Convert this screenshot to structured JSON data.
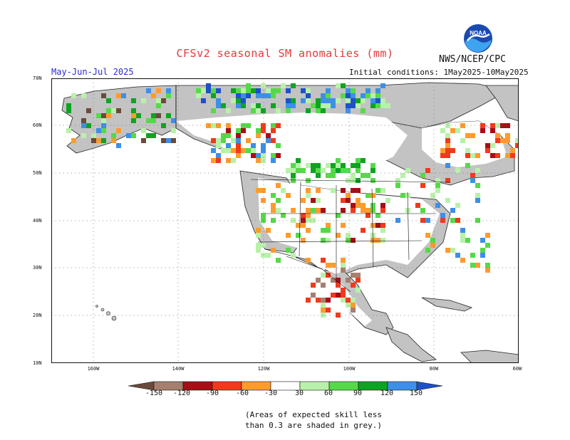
{
  "title": "CFSv2 seasonal SM anomalies (mm)",
  "agency": "NWS/NCEP/CPC",
  "logo_text": "NOAA",
  "season": "May-Jun-Jul 2025",
  "initial_conditions": "Initial conditions: 1May2025-10May2025",
  "lat_labels": [
    "70N",
    "60N",
    "50N",
    "40N",
    "30N",
    "20N",
    "10N"
  ],
  "lon_labels": [
    "160W",
    "140W",
    "120W",
    "100W",
    "80W",
    "60W"
  ],
  "colorbar": {
    "ticks": [
      "-150",
      "-120",
      "-90",
      "-60",
      "-30",
      "30",
      "60",
      "90",
      "120",
      "150"
    ],
    "colors": [
      "#6b4a3c",
      "#a77f6e",
      "#a60f15",
      "#f03a1c",
      "#fe9b2f",
      "#ffffff",
      "#b8f1a9",
      "#56d949",
      "#0fa322",
      "#3d8fe8",
      "#1e50c8"
    ]
  },
  "note": [
    "(Areas of expected skill less",
    "than 0.3 are shaded in grey.)"
  ],
  "colors": {
    "ocean": "#ffffff",
    "grey": "#c3c3c3",
    "title": "#e8363a",
    "season": "#2a2ad6"
  }
}
